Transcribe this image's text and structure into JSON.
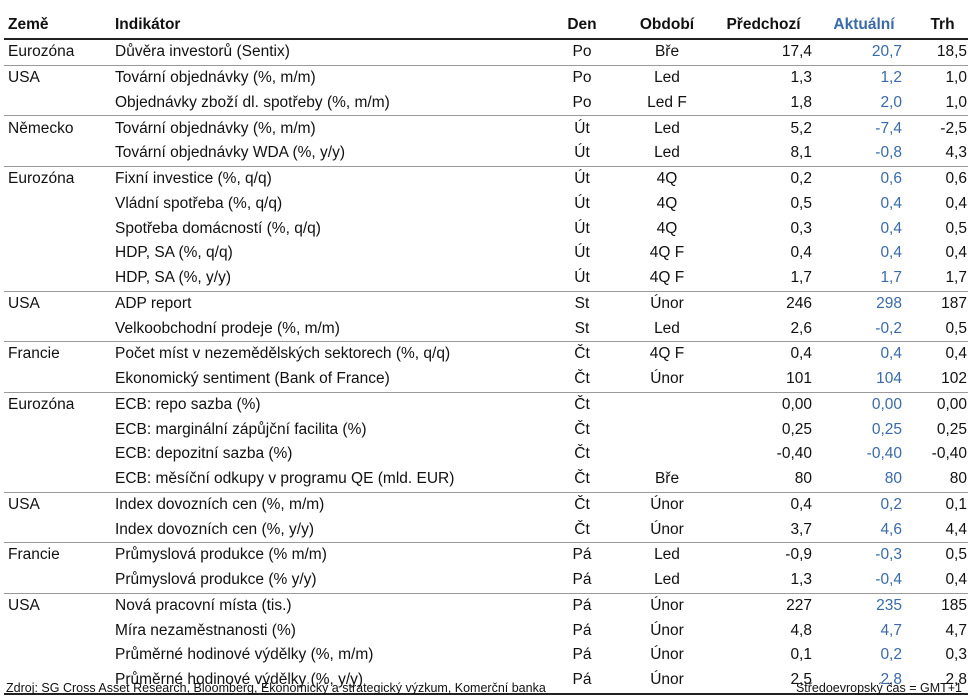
{
  "colors": {
    "actual": "#3a6aa8",
    "text": "#111111",
    "rule": "#222222"
  },
  "headers": {
    "country": "Země",
    "indicator": "Indikátor",
    "day": "Den",
    "period": "Období",
    "previous": "Předchozí",
    "actual": "Aktuální",
    "market": "Trh"
  },
  "rows": [
    {
      "country": "Eurozóna",
      "indicator": "Důvěra investorů (Sentix)",
      "day": "Po",
      "period": "Bře",
      "previous": "17,4",
      "actual": "20,7",
      "market": "18,5",
      "group_end": true
    },
    {
      "country": "USA",
      "indicator": "Tovární objednávky (%, m/m)",
      "day": "Po",
      "period": "Led",
      "previous": "1,3",
      "actual": "1,2",
      "market": "1,0",
      "group_end": false
    },
    {
      "country": "",
      "indicator": "Objednávky zboží dl. spotřeby (%, m/m)",
      "day": "Po",
      "period": "Led F",
      "previous": "1,8",
      "actual": "2,0",
      "market": "1,0",
      "group_end": true
    },
    {
      "country": "Německo",
      "indicator": "Tovární objednávky (%, m/m)",
      "day": "Út",
      "period": "Led",
      "previous": "5,2",
      "actual": "-7,4",
      "market": "-2,5",
      "group_end": false
    },
    {
      "country": "",
      "indicator": "Tovární objednávky WDA (%, y/y)",
      "day": "Út",
      "period": "Led",
      "previous": "8,1",
      "actual": "-0,8",
      "market": "4,3",
      "group_end": true
    },
    {
      "country": "Eurozóna",
      "indicator": "Fixní investice (%, q/q)",
      "day": "Út",
      "period": "4Q",
      "previous": "0,2",
      "actual": "0,6",
      "market": "0,6",
      "group_end": false
    },
    {
      "country": "",
      "indicator": "Vládní spotřeba (%, q/q)",
      "day": "Út",
      "period": "4Q",
      "previous": "0,5",
      "actual": "0,4",
      "market": "0,4",
      "group_end": false
    },
    {
      "country": "",
      "indicator": "Spotřeba domácností (%, q/q)",
      "day": "Út",
      "period": "4Q",
      "previous": "0,3",
      "actual": "0,4",
      "market": "0,5",
      "group_end": false
    },
    {
      "country": "",
      "indicator": "HDP, SA (%, q/q)",
      "day": "Út",
      "period": "4Q F",
      "previous": "0,4",
      "actual": "0,4",
      "market": "0,4",
      "group_end": false
    },
    {
      "country": "",
      "indicator": "HDP, SA (%, y/y)",
      "day": "Út",
      "period": "4Q F",
      "previous": "1,7",
      "actual": "1,7",
      "market": "1,7",
      "group_end": true
    },
    {
      "country": "USA",
      "indicator": "ADP report",
      "day": "St",
      "period": "Únor",
      "previous": "246",
      "actual": "298",
      "market": "187",
      "group_end": false
    },
    {
      "country": "",
      "indicator": "Velkoobchodní prodeje (%, m/m)",
      "day": "St",
      "period": "Led",
      "previous": "2,6",
      "actual": "-0,2",
      "market": "0,5",
      "group_end": true
    },
    {
      "country": "Francie",
      "indicator": "Počet míst v nezemědělských sektorech (%, q/q)",
      "day": "Čt",
      "period": "4Q F",
      "previous": "0,4",
      "actual": "0,4",
      "market": "0,4",
      "group_end": false
    },
    {
      "country": "",
      "indicator": "Ekonomický sentiment (Bank of France)",
      "day": "Čt",
      "period": "Únor",
      "previous": "101",
      "actual": "104",
      "market": "102",
      "group_end": true
    },
    {
      "country": "Eurozóna",
      "indicator": "ECB: repo sazba (%)",
      "day": "Čt",
      "period": "",
      "previous": "0,00",
      "actual": "0,00",
      "market": "0,00",
      "group_end": false
    },
    {
      "country": "",
      "indicator": "ECB: marginální zápůjční facilita (%)",
      "day": "Čt",
      "period": "",
      "previous": "0,25",
      "actual": "0,25",
      "market": "0,25",
      "group_end": false
    },
    {
      "country": "",
      "indicator": "ECB: depozitní sazba (%)",
      "day": "Čt",
      "period": "",
      "previous": "-0,40",
      "actual": "-0,40",
      "market": "-0,40",
      "group_end": false
    },
    {
      "country": "",
      "indicator": "ECB: měsíční odkupy v programu QE (mld. EUR)",
      "day": "Čt",
      "period": "Bře",
      "previous": "80",
      "actual": "80",
      "market": "80",
      "group_end": true
    },
    {
      "country": "USA",
      "indicator": "Index dovozních cen (%, m/m)",
      "day": "Čt",
      "period": "Únor",
      "previous": "0,4",
      "actual": "0,2",
      "market": "0,1",
      "group_end": false
    },
    {
      "country": "",
      "indicator": "Index dovozních cen (%, y/y)",
      "day": "Čt",
      "period": "Únor",
      "previous": "3,7",
      "actual": "4,6",
      "market": "4,4",
      "group_end": true
    },
    {
      "country": "Francie",
      "indicator": "Průmyslová produkce (% m/m)",
      "day": "Pá",
      "period": "Led",
      "previous": "-0,9",
      "actual": "-0,3",
      "market": "0,5",
      "group_end": false
    },
    {
      "country": "",
      "indicator": "Průmyslová produkce (% y/y)",
      "day": "Pá",
      "period": "Led",
      "previous": "1,3",
      "actual": "-0,4",
      "market": "0,4",
      "group_end": true
    },
    {
      "country": "USA",
      "indicator": "Nová pracovní místa (tis.)",
      "day": "Pá",
      "period": "Únor",
      "previous": "227",
      "actual": "235",
      "market": "185",
      "group_end": false
    },
    {
      "country": "",
      "indicator": "Míra nezaměstnanosti (%)",
      "day": "Pá",
      "period": "Únor",
      "previous": "4,8",
      "actual": "4,7",
      "market": "4,7",
      "group_end": false
    },
    {
      "country": "",
      "indicator": "Průměrné hodinové výdělky (%, m/m)",
      "day": "Pá",
      "period": "Únor",
      "previous": "0,1",
      "actual": "0,2",
      "market": "0,3",
      "group_end": false
    },
    {
      "country": "",
      "indicator": "Průměrné hodinové výdělky (%, y/y)",
      "day": "Pá",
      "period": "Únor",
      "previous": "2,5",
      "actual": "2,8",
      "market": "2,8",
      "group_end": false
    }
  ],
  "footer": {
    "source": "Zdroj: SG Cross Asset Research, Bloomberg, Ekonomický a strategický výzkum, Komerční banka",
    "timezone": "Středoevropský čas = GMT+1"
  }
}
